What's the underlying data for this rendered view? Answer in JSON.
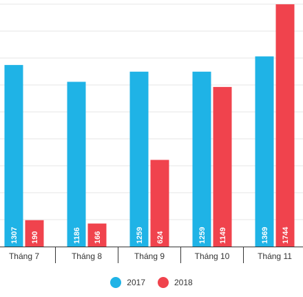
{
  "chart_data": {
    "type": "bar",
    "categories": [
      "Tháng 7",
      "Tháng 8",
      "Tháng 9",
      "Tháng 10",
      "Tháng 11"
    ],
    "series": [
      {
        "name": "2017",
        "values": [
          1307,
          1186,
          1259,
          1259,
          1369
        ],
        "color": "#1fb3e6"
      },
      {
        "name": "2018",
        "values": [
          190,
          166,
          624,
          1149,
          1744
        ],
        "color": "#f0434d"
      }
    ],
    "title": "",
    "xlabel": "",
    "ylabel": "",
    "ylim": [
      0,
      1750
    ],
    "grid": true,
    "legend_placement": "bottom-center"
  }
}
